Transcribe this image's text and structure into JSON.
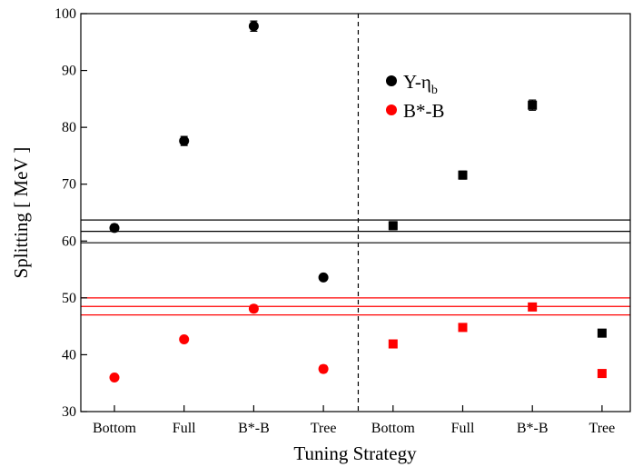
{
  "chart_data": {
    "type": "scatter",
    "xlabel": "Tuning Strategy",
    "ylabel": "Splitting [ MeV ]",
    "ylim": [
      30,
      100
    ],
    "yticks": [
      30,
      40,
      50,
      60,
      70,
      80,
      90,
      100
    ],
    "categories": [
      "Bottom",
      "Full",
      "B*-B",
      "Tree",
      "Bottom",
      "Full",
      "B*-B",
      "Tree"
    ],
    "grid": false,
    "legend_position": "top-right",
    "legend_upsilon_main": "Υ-η",
    "legend_upsilon_sub": "b",
    "legend_bstar": "B*-B",
    "series": [
      {
        "name": "Υ-η_b",
        "color": "#000000",
        "groups": [
          {
            "marker": "circle",
            "points": [
              {
                "category_index": 0,
                "y": 62.3,
                "err": 0.6
              },
              {
                "category_index": 1,
                "y": 77.6,
                "err": 0.8
              },
              {
                "category_index": 2,
                "y": 97.8,
                "err": 0.9
              },
              {
                "category_index": 3,
                "y": 53.6,
                "err": 0.5
              }
            ]
          },
          {
            "marker": "square",
            "points": [
              {
                "category_index": 4,
                "y": 62.7,
                "err": 0.7
              },
              {
                "category_index": 5,
                "y": 71.6,
                "err": 0.7
              },
              {
                "category_index": 6,
                "y": 83.9,
                "err": 0.9
              },
              {
                "category_index": 7,
                "y": 43.8,
                "err": 0.4
              }
            ]
          }
        ]
      },
      {
        "name": "B*-B",
        "color": "#ff0000",
        "groups": [
          {
            "marker": "circle",
            "points": [
              {
                "category_index": 0,
                "y": 36.0,
                "err": 0.5
              },
              {
                "category_index": 1,
                "y": 42.7,
                "err": 0.5
              },
              {
                "category_index": 2,
                "y": 48.1,
                "err": 0.6
              },
              {
                "category_index": 3,
                "y": 37.5,
                "err": 0.6
              }
            ]
          },
          {
            "marker": "square",
            "points": [
              {
                "category_index": 4,
                "y": 41.9,
                "err": 0.5
              },
              {
                "category_index": 5,
                "y": 44.8,
                "err": 0.5
              },
              {
                "category_index": 6,
                "y": 48.4,
                "err": 0.5
              },
              {
                "category_index": 7,
                "y": 36.7,
                "err": 0.4
              }
            ]
          }
        ]
      }
    ],
    "reference_bands": [
      {
        "color": "#000000",
        "values": [
          59.7,
          61.7,
          63.7
        ]
      },
      {
        "color": "#ff0000",
        "values": [
          47.0,
          48.5,
          50.0
        ]
      }
    ],
    "divider_between_categories": [
      3,
      4
    ]
  }
}
